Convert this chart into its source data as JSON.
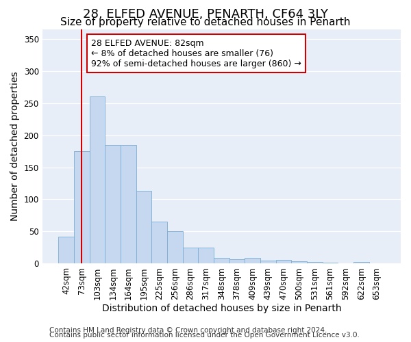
{
  "title1": "28, ELFED AVENUE, PENARTH, CF64 3LY",
  "title2": "Size of property relative to detached houses in Penarth",
  "xlabel": "Distribution of detached houses by size in Penarth",
  "ylabel": "Number of detached properties",
  "categories": [
    "42sqm",
    "73sqm",
    "103sqm",
    "134sqm",
    "164sqm",
    "195sqm",
    "225sqm",
    "256sqm",
    "286sqm",
    "317sqm",
    "348sqm",
    "378sqm",
    "409sqm",
    "439sqm",
    "470sqm",
    "500sqm",
    "531sqm",
    "561sqm",
    "592sqm",
    "622sqm",
    "653sqm"
  ],
  "bar_heights": [
    42,
    175,
    260,
    185,
    185,
    113,
    65,
    50,
    25,
    25,
    9,
    7,
    9,
    5,
    6,
    4,
    3,
    2,
    0,
    3,
    0
  ],
  "bar_color": "#c5d8f0",
  "bar_edge_color": "#7aadd4",
  "vline_x": 1,
  "vline_color": "#cc0000",
  "ylim": [
    0,
    365
  ],
  "yticks": [
    0,
    50,
    100,
    150,
    200,
    250,
    300,
    350
  ],
  "annotation_text": "28 ELFED AVENUE: 82sqm\n← 8% of detached houses are smaller (76)\n92% of semi-detached houses are larger (860) →",
  "annotation_box_color": "#ffffff",
  "annotation_box_edge": "#cc0000",
  "footer1": "Contains HM Land Registry data © Crown copyright and database right 2024.",
  "footer2": "Contains public sector information licensed under the Open Government Licence v3.0.",
  "bg_color": "#ffffff",
  "plot_bg_color": "#e8eef8",
  "grid_color": "#ffffff",
  "title1_fontsize": 13,
  "title2_fontsize": 11,
  "axis_label_fontsize": 10,
  "tick_fontsize": 8.5,
  "footer_fontsize": 7.5,
  "ann_fontsize": 9
}
